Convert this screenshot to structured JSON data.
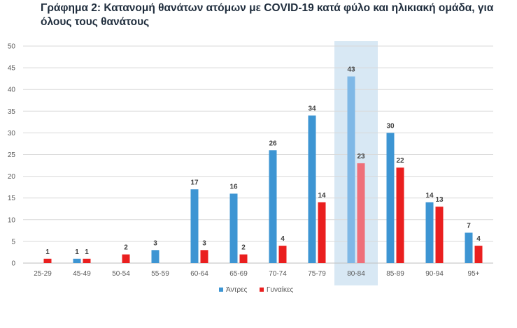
{
  "title": "Γράφημα 2: Κατανομή θανάτων ατόμων με COVID-19 κατά φύλο και ηλικιακή ομάδα, για όλους τους θανάτους",
  "chart_data": {
    "type": "bar",
    "title": "Γράφημα 2: Κατανομή θανάτων ατόμων με COVID-19 κατά φύλο και ηλικιακή ομάδα, για όλους τους θανάτους",
    "xlabel": "",
    "ylabel": "",
    "ylim": [
      0,
      50
    ],
    "yticks": [
      0,
      5,
      10,
      15,
      20,
      25,
      30,
      35,
      40,
      45,
      50
    ],
    "grid": true,
    "legend": "bottom",
    "categories": [
      "25-29",
      "45-49",
      "50-54",
      "55-59",
      "60-64",
      "65-69",
      "70-74",
      "75-79",
      "80-84",
      "85-89",
      "90-94",
      "95+"
    ],
    "highlighted_category": "80-84",
    "series": [
      {
        "name": "Άντρες",
        "color": "#3d95d3",
        "highlight_color": "#7fb8e6",
        "values": [
          null,
          1,
          null,
          3,
          17,
          16,
          26,
          34,
          43,
          30,
          14,
          7
        ]
      },
      {
        "name": "Γυναίκες",
        "color": "#ea1f1f",
        "highlight_color": "#ef6f79",
        "values": [
          1,
          1,
          2,
          null,
          3,
          2,
          4,
          14,
          23,
          22,
          13,
          4
        ]
      }
    ],
    "colors": {
      "highlight_band": "#d8e8f4",
      "grid": "#d9d9d9",
      "axis": "#bfbfbf"
    }
  }
}
